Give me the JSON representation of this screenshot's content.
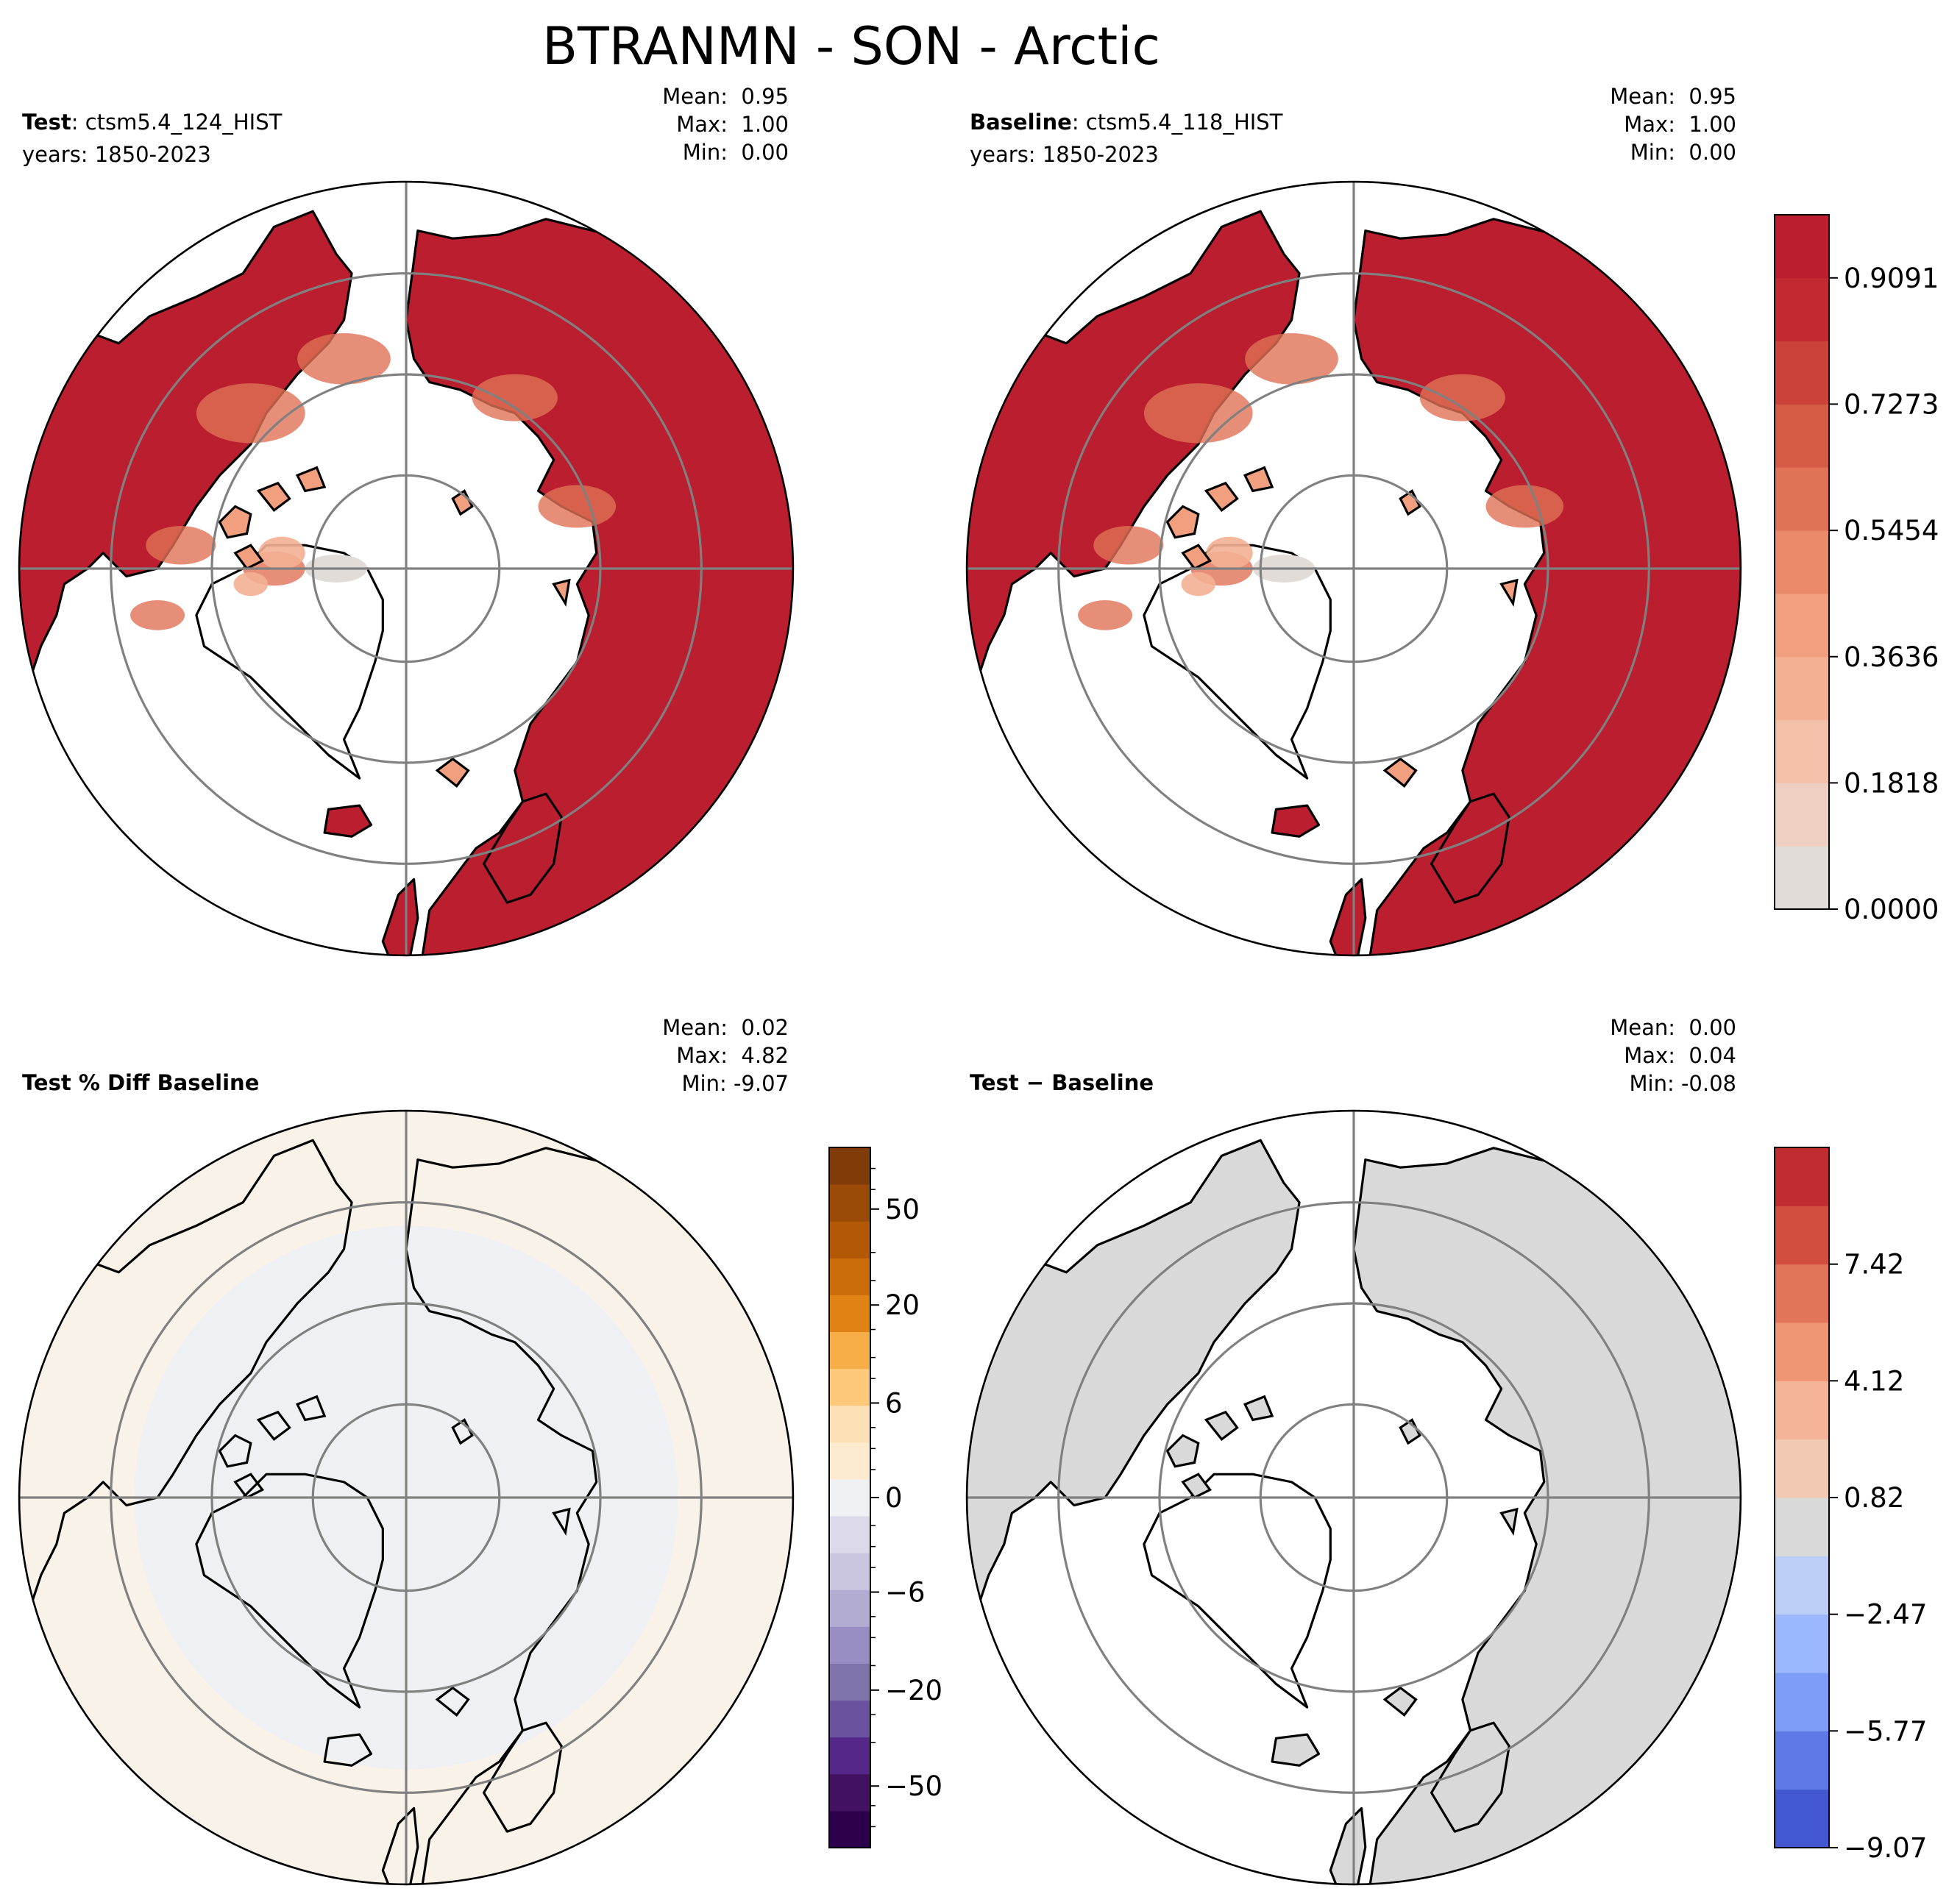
{
  "title": "BTRANMN - SON - Arctic",
  "panels": [
    {
      "id": "test",
      "label_bold": "Test",
      "label_rest": ": ctsm5.4_124_HIST",
      "years": "years: 1850-2023",
      "stats": {
        "mean": "Mean:  0.95",
        "max": "Max:  1.00",
        "min": "Min:  0.00"
      },
      "fill": "full"
    },
    {
      "id": "baseline",
      "label_bold": "Baseline",
      "label_rest": ": ctsm5.4_118_HIST",
      "years": "years: 1850-2023",
      "stats": {
        "mean": "Mean:  0.95",
        "max": "Max:  1.00",
        "min": "Min:  0.00"
      },
      "fill": "full"
    },
    {
      "id": "pctdiff",
      "label_bold": "Test % Diff Baseline",
      "label_rest": "",
      "years": "",
      "stats": {
        "mean": "Mean:  0.02",
        "max": "Max:  4.82",
        "min": "Min: -9.07"
      },
      "fill": "pct"
    },
    {
      "id": "diff",
      "label_bold": "Test",
      "label_rest": " − Baseline",
      "years": "",
      "stats": {
        "mean": "Mean:  0.00",
        "max": "Max:  0.04",
        "min": "Min: -0.08"
      },
      "fill": "diff"
    }
  ],
  "chart_data": [
    {
      "type": "heatmap",
      "projection": "north-polar-stereographic",
      "title": "BTRANMN - SON - Arctic",
      "panels": [
        "Test",
        "Baseline"
      ],
      "colorbar": {
        "colormap": "coolwarm-upper",
        "range": [
          0.0,
          1.0
        ],
        "levels": 11,
        "tick_labels": [
          "0.0000",
          "0.1818",
          "0.3636",
          "0.5454",
          "0.7273",
          "0.9091"
        ],
        "colors": [
          "#e2dcd8",
          "#efcfc1",
          "#f3c0aa",
          "#f3b093",
          "#f19f7f",
          "#ea8a6a",
          "#e07256",
          "#d55b45",
          "#cb4239",
          "#c12a31",
          "#bb1e2e"
        ]
      },
      "stats": {
        "mean": 0.95,
        "max": 1.0,
        "min": 0.0
      }
    },
    {
      "type": "heatmap",
      "projection": "north-polar-stereographic",
      "panel": "Test % Diff Baseline",
      "colorbar": {
        "colormap": "PuOr_r",
        "tick_labels": [
          "−50",
          "−20",
          "−6",
          "0",
          "6",
          "20",
          "50"
        ],
        "colors": [
          "#2d004b",
          "#421161",
          "#542788",
          "#6a52a0",
          "#8073ac",
          "#998ec3",
          "#b2abd2",
          "#cbc6e0",
          "#dcd9ea",
          "#eff0f3",
          "#fdebd0",
          "#fee0b6",
          "#fdc87a",
          "#f7ad48",
          "#e08214",
          "#cb6c0a",
          "#b35806",
          "#9a4a06",
          "#7f3b08"
        ]
      },
      "stats": {
        "mean": 0.02,
        "max": 4.82,
        "min": -9.07
      }
    },
    {
      "type": "heatmap",
      "projection": "north-polar-stereographic",
      "panel": "Test − Baseline",
      "colorbar": {
        "colormap": "coolwarm",
        "tick_labels": [
          "−9.07",
          "−5.77",
          "−2.47",
          "0.82",
          "4.12",
          "7.42"
        ],
        "colors": [
          "#4257d0",
          "#5f7ae6",
          "#7e9df8",
          "#9bb7fd",
          "#bbcff6",
          "#d9d9d9",
          "#f2cab4",
          "#f5b497",
          "#ef9675",
          "#e27459",
          "#d24e3e",
          "#c02c31"
        ]
      },
      "stats": {
        "mean": 0.0,
        "max": 0.04,
        "min": -0.08
      }
    }
  ]
}
